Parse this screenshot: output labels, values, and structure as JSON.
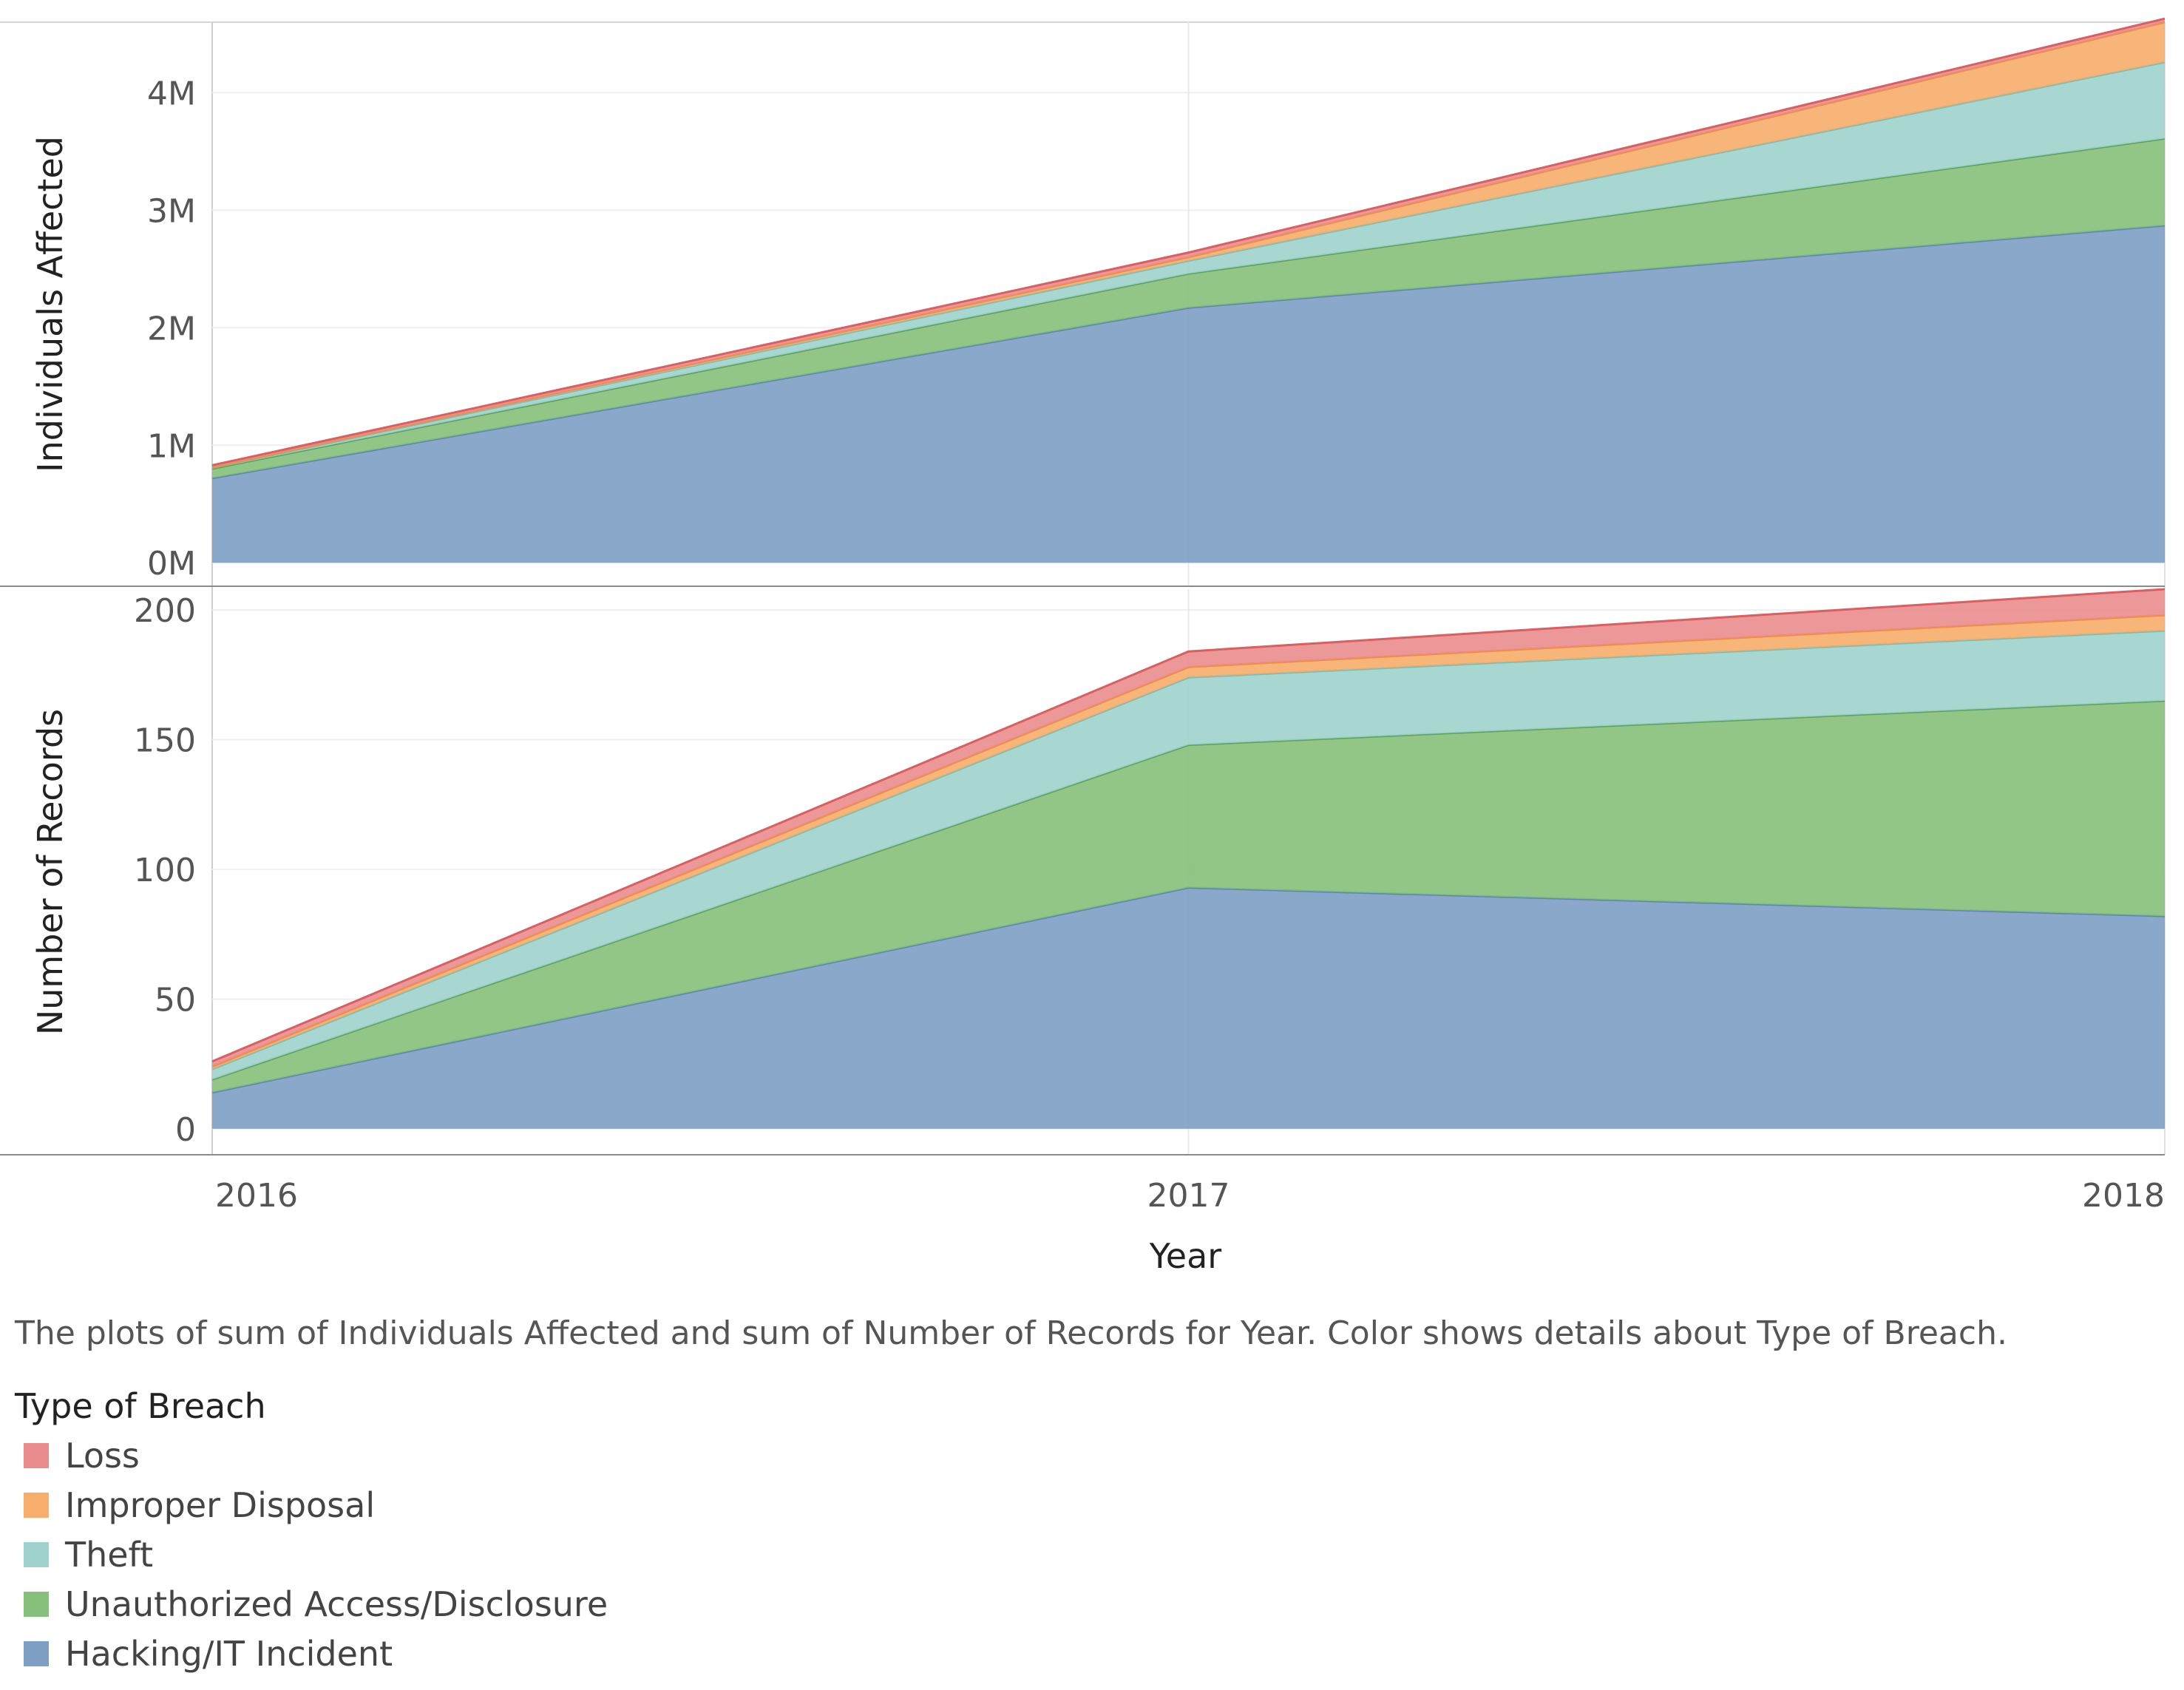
{
  "chart_data": {
    "type": "area",
    "stacked": true,
    "x": [
      "2016",
      "2017",
      "2018"
    ],
    "xlabel": "Year",
    "series_order_bottom_to_top": [
      "Hacking/IT Incident",
      "Unauthorized Access/Disclosure",
      "Theft",
      "Improper Disposal",
      "Loss"
    ],
    "colors": {
      "Hacking/IT Incident": "#7d9fc3",
      "Unauthorized Access/Disclosure": "#86c07a",
      "Theft": "#9fd2cc",
      "Improper Disposal": "#f7ad6b",
      "Loss": "#ea8c8d"
    },
    "line_colors": {
      "Hacking/IT Incident": "#5f86b3",
      "Unauthorized Access/Disclosure": "#5fa05a",
      "Theft": "#7bbdb5",
      "Improper Disposal": "#ee8f3e",
      "Loss": "#d95f60"
    },
    "panels": [
      {
        "id": "individuals",
        "ylabel": "Individuals Affected",
        "ylim": [
          -200000,
          4600000
        ],
        "yticks": [
          0,
          1000000,
          2000000,
          3000000,
          4000000
        ],
        "ytick_labels": [
          "0M",
          "1M",
          "2M",
          "3M",
          "4M"
        ],
        "series": [
          {
            "name": "Hacking/IT Incident",
            "values": [
              720000,
              2170000,
              2870000
            ]
          },
          {
            "name": "Unauthorized Access/Disclosure",
            "values": [
              80000,
              290000,
              740000
            ]
          },
          {
            "name": "Theft",
            "values": [
              10000,
              110000,
              650000
            ]
          },
          {
            "name": "Improper Disposal",
            "values": [
              3000,
              30000,
              340000
            ]
          },
          {
            "name": "Loss",
            "values": [
              17000,
              40000,
              30000
            ]
          }
        ]
      },
      {
        "id": "records",
        "ylabel": "Number of Records",
        "ylim": [
          -10,
          208
        ],
        "yticks": [
          0,
          50,
          100,
          150,
          200
        ],
        "ytick_labels": [
          "0",
          "50",
          "100",
          "150",
          "200"
        ],
        "series": [
          {
            "name": "Hacking/IT Incident",
            "values": [
              14,
              93,
              82
            ]
          },
          {
            "name": "Unauthorized Access/Disclosure",
            "values": [
              5,
              55,
              83
            ]
          },
          {
            "name": "Theft",
            "values": [
              4,
              26,
              27
            ]
          },
          {
            "name": "Improper Disposal",
            "values": [
              1,
              4,
              6
            ]
          },
          {
            "name": "Loss",
            "values": [
              2,
              6,
              10
            ]
          }
        ]
      }
    ]
  },
  "caption": "The plots of sum of Individuals Affected and sum of Number of Records for Year.  Color shows details about Type of Breach.",
  "legend": {
    "title": "Type of Breach",
    "items": [
      {
        "label": "Loss",
        "color": "#ea8c8d"
      },
      {
        "label": "Improper Disposal",
        "color": "#f7ad6b"
      },
      {
        "label": "Theft",
        "color": "#9fd2cc"
      },
      {
        "label": "Unauthorized Access/Disclosure",
        "color": "#86c07a"
      },
      {
        "label": "Hacking/IT Incident",
        "color": "#7d9fc3"
      }
    ]
  }
}
